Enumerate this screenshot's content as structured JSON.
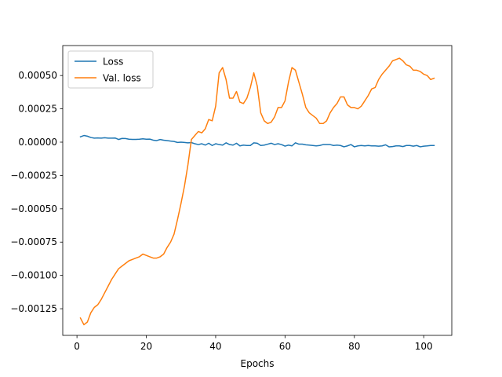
{
  "chart_data": {
    "type": "line",
    "title": "",
    "xlabel": "Epochs",
    "ylabel": "",
    "xlim": [
      -4.1,
      108.1
    ],
    "ylim": [
      -0.00145,
      0.000725
    ],
    "xticks": [
      0,
      20,
      40,
      60,
      80,
      100
    ],
    "yticks": [
      -0.00125,
      -0.001,
      -0.00075,
      -0.0005,
      -0.00025,
      0,
      0.00025,
      0.0005
    ],
    "ytick_labels": [
      "−0.00125",
      "−0.00100",
      "−0.00075",
      "−0.00050",
      "−0.00025",
      "0.00000",
      "0.00025",
      "0.00050"
    ],
    "xtick_labels": [
      "0",
      "20",
      "40",
      "60",
      "80",
      "100"
    ],
    "grid": false,
    "legend_position": "top-left",
    "x": [
      1,
      2,
      3,
      4,
      5,
      6,
      7,
      8,
      9,
      10,
      11,
      12,
      13,
      14,
      15,
      16,
      17,
      18,
      19,
      20,
      21,
      22,
      23,
      24,
      25,
      26,
      27,
      28,
      29,
      30,
      31,
      32,
      33,
      34,
      35,
      36,
      37,
      38,
      39,
      40,
      41,
      42,
      43,
      44,
      45,
      46,
      47,
      48,
      49,
      50,
      51,
      52,
      53,
      54,
      55,
      56,
      57,
      58,
      59,
      60,
      61,
      62,
      63,
      64,
      65,
      66,
      67,
      68,
      69,
      70,
      71,
      72,
      73,
      74,
      75,
      76,
      77,
      78,
      79,
      80,
      81,
      82,
      83,
      84,
      85,
      86,
      87,
      88,
      89,
      90,
      91,
      92,
      93,
      94,
      95,
      96,
      97,
      98,
      99,
      100,
      101,
      102,
      103
    ],
    "series": [
      {
        "name": "Loss",
        "color": "#1f77b4",
        "values": [
          4e-05,
          5e-05,
          4.5e-05,
          3.5e-05,
          3e-05,
          3.2e-05,
          3e-05,
          3.3e-05,
          3e-05,
          3e-05,
          3.1e-05,
          2e-05,
          2.8e-05,
          2.7e-05,
          2.2e-05,
          2.1e-05,
          2.1e-05,
          2.2e-05,
          2.5e-05,
          2.2e-05,
          2.3e-05,
          1.5e-05,
          1.2e-05,
          2e-05,
          1.5e-05,
          1.2e-05,
          8e-06,
          5e-06,
          -2e-06,
          0,
          -2e-06,
          -5e-06,
          -3e-06,
          -1.2e-05,
          -1.8e-05,
          -1.2e-05,
          -2.2e-05,
          -8e-06,
          -2.5e-05,
          -1.2e-05,
          -1.8e-05,
          -2.2e-05,
          -5e-06,
          -1.8e-05,
          -2.2e-05,
          -8e-06,
          -2.8e-05,
          -2.2e-05,
          -2.5e-05,
          -2.5e-05,
          -5e-06,
          -8e-06,
          -2.5e-05,
          -2.2e-05,
          -1.5e-05,
          -8e-06,
          -1.8e-05,
          -1.2e-05,
          -1.8e-05,
          -3e-05,
          -2.2e-05,
          -2.8e-05,
          -5e-06,
          -1.5e-05,
          -1.5e-05,
          -2e-05,
          -2.2e-05,
          -2.5e-05,
          -2.8e-05,
          -2.5e-05,
          -1.8e-05,
          -1.8e-05,
          -1.8e-05,
          -2.5e-05,
          -2.2e-05,
          -2.5e-05,
          -3.5e-05,
          -2.8e-05,
          -1.8e-05,
          -3.5e-05,
          -2.8e-05,
          -2.5e-05,
          -2.8e-05,
          -2.5e-05,
          -2.8e-05,
          -2.8e-05,
          -3e-05,
          -2.8e-05,
          -2e-05,
          -3.5e-05,
          -3.3e-05,
          -2.8e-05,
          -2.8e-05,
          -3.3e-05,
          -2.5e-05,
          -2.5e-05,
          -3e-05,
          -2.5e-05,
          -3.5e-05,
          -3e-05,
          -2.8e-05,
          -2.5e-05,
          -2.5e-05
        ]
      },
      {
        "name": "Val. loss",
        "color": "#ff7f0e",
        "values": [
          -0.00132,
          -0.00137,
          -0.00135,
          -0.00128,
          -0.00124,
          -0.00122,
          -0.00118,
          -0.00113,
          -0.00108,
          -0.00103,
          -0.00099,
          -0.00095,
          -0.00093,
          -0.00091,
          -0.00089,
          -0.00088,
          -0.00087,
          -0.00086,
          -0.00084,
          -0.00085,
          -0.00086,
          -0.00087,
          -0.00087,
          -0.00086,
          -0.00084,
          -0.00079,
          -0.00075,
          -0.00069,
          -0.00058,
          -0.00046,
          -0.00033,
          -0.00017,
          2e-05,
          5e-05,
          8e-05,
          7e-05,
          0.0001,
          0.00017,
          0.00016,
          0.00027,
          0.00052,
          0.00056,
          0.00047,
          0.00033,
          0.00033,
          0.00038,
          0.0003,
          0.00029,
          0.00033,
          0.00041,
          0.00052,
          0.00042,
          0.00022,
          0.00016,
          0.00014,
          0.00015,
          0.00019,
          0.00026,
          0.00026,
          0.00031,
          0.00045,
          0.00056,
          0.00054,
          0.00045,
          0.00036,
          0.00026,
          0.00022,
          0.0002,
          0.00018,
          0.00014,
          0.00014,
          0.00016,
          0.00022,
          0.00026,
          0.00029,
          0.00034,
          0.00034,
          0.00028,
          0.00026,
          0.00026,
          0.00025,
          0.00027,
          0.00031,
          0.00035,
          0.0004,
          0.00041,
          0.00047,
          0.00051,
          0.00054,
          0.00057,
          0.00061,
          0.00062,
          0.00063,
          0.00061,
          0.00058,
          0.00057,
          0.00054,
          0.00054,
          0.00053,
          0.00051,
          0.0005,
          0.00047,
          0.00048
        ]
      }
    ]
  }
}
